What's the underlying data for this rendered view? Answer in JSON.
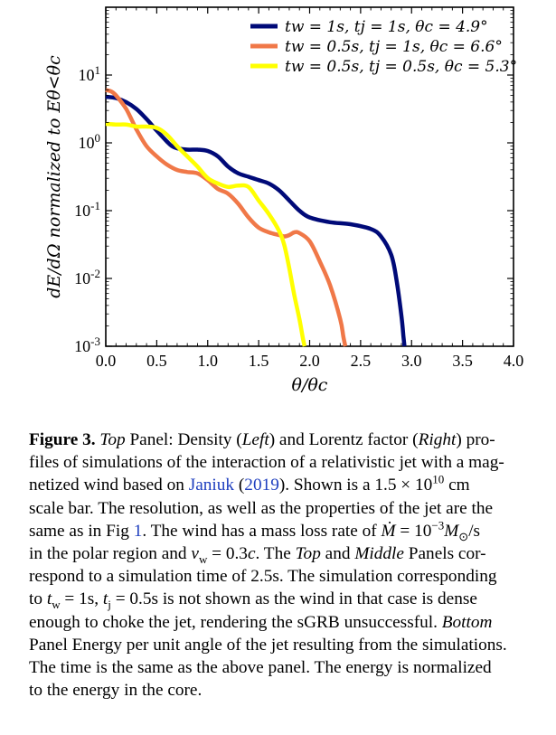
{
  "chart_data": {
    "type": "line",
    "title": "",
    "xlabel": "θ/θc",
    "ylabel": "dE/dΩ normalized to Eθ<θc",
    "xlim": [
      0.0,
      4.0
    ],
    "ylim_log10": [
      -3,
      2
    ],
    "yscale": "log",
    "x_ticks": [
      "0.0",
      "0.5",
      "1.0",
      "1.5",
      "2.0",
      "2.5",
      "3.0",
      "3.5",
      "4.0"
    ],
    "x_tick_values": [
      0.0,
      0.5,
      1.0,
      1.5,
      2.0,
      2.5,
      3.0,
      3.5,
      4.0
    ],
    "y_tick_exponents": [
      1,
      0,
      -1,
      -2,
      -3
    ],
    "y_tick_base": "10",
    "legend_position": "top-right",
    "grid": false,
    "series": [
      {
        "name": "tw = 1s, tj = 1s, θc = 4.9°",
        "color": "#000a78",
        "x": [
          0.0,
          0.1,
          0.2,
          0.3,
          0.4,
          0.5,
          0.6,
          0.65,
          0.7,
          0.8,
          0.9,
          1.0,
          1.1,
          1.2,
          1.3,
          1.4,
          1.5,
          1.6,
          1.7,
          1.8,
          1.9,
          2.0,
          2.2,
          2.4,
          2.6,
          2.7,
          2.8,
          2.85,
          2.9,
          2.92,
          2.93
        ],
        "log10y": [
          0.68,
          0.66,
          0.6,
          0.5,
          0.35,
          0.18,
          0.02,
          -0.05,
          -0.08,
          -0.1,
          -0.1,
          -0.12,
          -0.2,
          -0.35,
          -0.45,
          -0.5,
          -0.55,
          -0.6,
          -0.7,
          -0.85,
          -1.0,
          -1.1,
          -1.17,
          -1.2,
          -1.27,
          -1.38,
          -1.65,
          -2.0,
          -2.55,
          -2.85,
          -3.0
        ]
      },
      {
        "name": "tw = 0.5s, tj = 1s, θc = 6.6°",
        "color": "#f07848",
        "x": [
          0.0,
          0.05,
          0.1,
          0.2,
          0.3,
          0.4,
          0.5,
          0.6,
          0.7,
          0.8,
          0.9,
          1.0,
          1.1,
          1.2,
          1.3,
          1.4,
          1.5,
          1.6,
          1.7,
          1.75,
          1.8,
          1.85,
          1.9,
          2.0,
          2.1,
          2.2,
          2.3,
          2.33,
          2.35
        ],
        "log10y": [
          0.78,
          0.76,
          0.7,
          0.5,
          0.2,
          -0.05,
          -0.2,
          -0.32,
          -0.4,
          -0.43,
          -0.45,
          -0.55,
          -0.68,
          -0.75,
          -0.9,
          -1.1,
          -1.25,
          -1.32,
          -1.36,
          -1.38,
          -1.36,
          -1.32,
          -1.33,
          -1.45,
          -1.75,
          -2.1,
          -2.6,
          -2.85,
          -3.0
        ]
      },
      {
        "name": "tw = 0.5s, tj = 0.5s, θc = 5.3°",
        "color": "#ffff00",
        "x": [
          0.0,
          0.1,
          0.2,
          0.3,
          0.4,
          0.5,
          0.6,
          0.7,
          0.8,
          0.9,
          1.0,
          1.1,
          1.2,
          1.3,
          1.4,
          1.5,
          1.6,
          1.7,
          1.75,
          1.8,
          1.85,
          1.9,
          1.93,
          1.95
        ],
        "log10y": [
          0.28,
          0.27,
          0.27,
          0.24,
          0.24,
          0.22,
          0.12,
          -0.05,
          -0.2,
          -0.35,
          -0.52,
          -0.6,
          -0.65,
          -0.63,
          -0.65,
          -0.85,
          -1.05,
          -1.3,
          -1.5,
          -1.85,
          -2.25,
          -2.6,
          -2.85,
          -3.0
        ]
      }
    ]
  },
  "legend": [
    {
      "tw": "0.5s",
      "tj": "1s",
      "theta": "6.6°"
    }
  ],
  "caption": {
    "label": "Figure 3.",
    "lines": [
      [
        {
          "t": "Figure 3.",
          "s": "b"
        },
        {
          "t": " "
        },
        {
          "t": "Top",
          "s": "i"
        },
        {
          "t": " Panel: Density ("
        },
        {
          "t": "Left",
          "s": "i"
        },
        {
          "t": ") and Lorentz factor ("
        },
        {
          "t": "Right",
          "s": "i"
        },
        {
          "t": ") pro-"
        }
      ],
      [
        {
          "t": "files of simulations of the interaction of a relativistic jet with a mag-"
        }
      ],
      [
        {
          "t": "netized wind based on "
        },
        {
          "t": "Janiuk",
          "s": "link"
        },
        {
          "t": " ("
        },
        {
          "t": "2019",
          "s": "link"
        },
        {
          "t": ").  Shown is a 1.5 × 10"
        },
        {
          "t": "10",
          "s": "sup"
        },
        {
          "t": " cm"
        }
      ],
      [
        {
          "t": "scale bar. The resolution, as well as the properties of the jet are the"
        }
      ],
      [
        {
          "t": "same as in Fig "
        },
        {
          "t": "1",
          "s": "link"
        },
        {
          "t": ". The wind has a mass loss rate of "
        },
        {
          "t": "Ṁ",
          "s": "i"
        },
        {
          "t": " = 10"
        },
        {
          "t": "−3",
          "s": "sup"
        },
        {
          "t": "M",
          "s": "i"
        },
        {
          "t": "⊙",
          "s": "sub"
        },
        {
          "t": "/s"
        }
      ],
      [
        {
          "t": "in the polar region and "
        },
        {
          "t": "v",
          "s": "i"
        },
        {
          "t": "w",
          "s": "sub"
        },
        {
          "t": " = 0.3"
        },
        {
          "t": "c",
          "s": "i"
        },
        {
          "t": ". The "
        },
        {
          "t": "Top",
          "s": "i"
        },
        {
          "t": " and "
        },
        {
          "t": "Middle",
          "s": "i"
        },
        {
          "t": " Panels cor-"
        }
      ],
      [
        {
          "t": "respond to a simulation time of 2.5s. The simulation corresponding"
        }
      ],
      [
        {
          "t": "to "
        },
        {
          "t": "t",
          "s": "i"
        },
        {
          "t": "w",
          "s": "sub"
        },
        {
          "t": " = 1s, "
        },
        {
          "t": "t",
          "s": "i"
        },
        {
          "t": "j",
          "s": "sub"
        },
        {
          "t": " = 0.5s is not shown as the wind in that case is dense"
        }
      ],
      [
        {
          "t": "enough to choke the jet, rendering the sGRB unsuccessful. "
        },
        {
          "t": "Bottom",
          "s": "i"
        }
      ],
      [
        {
          "t": "Panel Energy per unit angle of the jet resulting from the simulations."
        }
      ],
      [
        {
          "t": "The time is the same as the above panel. The energy is normalized"
        }
      ],
      [
        {
          "t": "to the energy in the core."
        }
      ]
    ]
  }
}
